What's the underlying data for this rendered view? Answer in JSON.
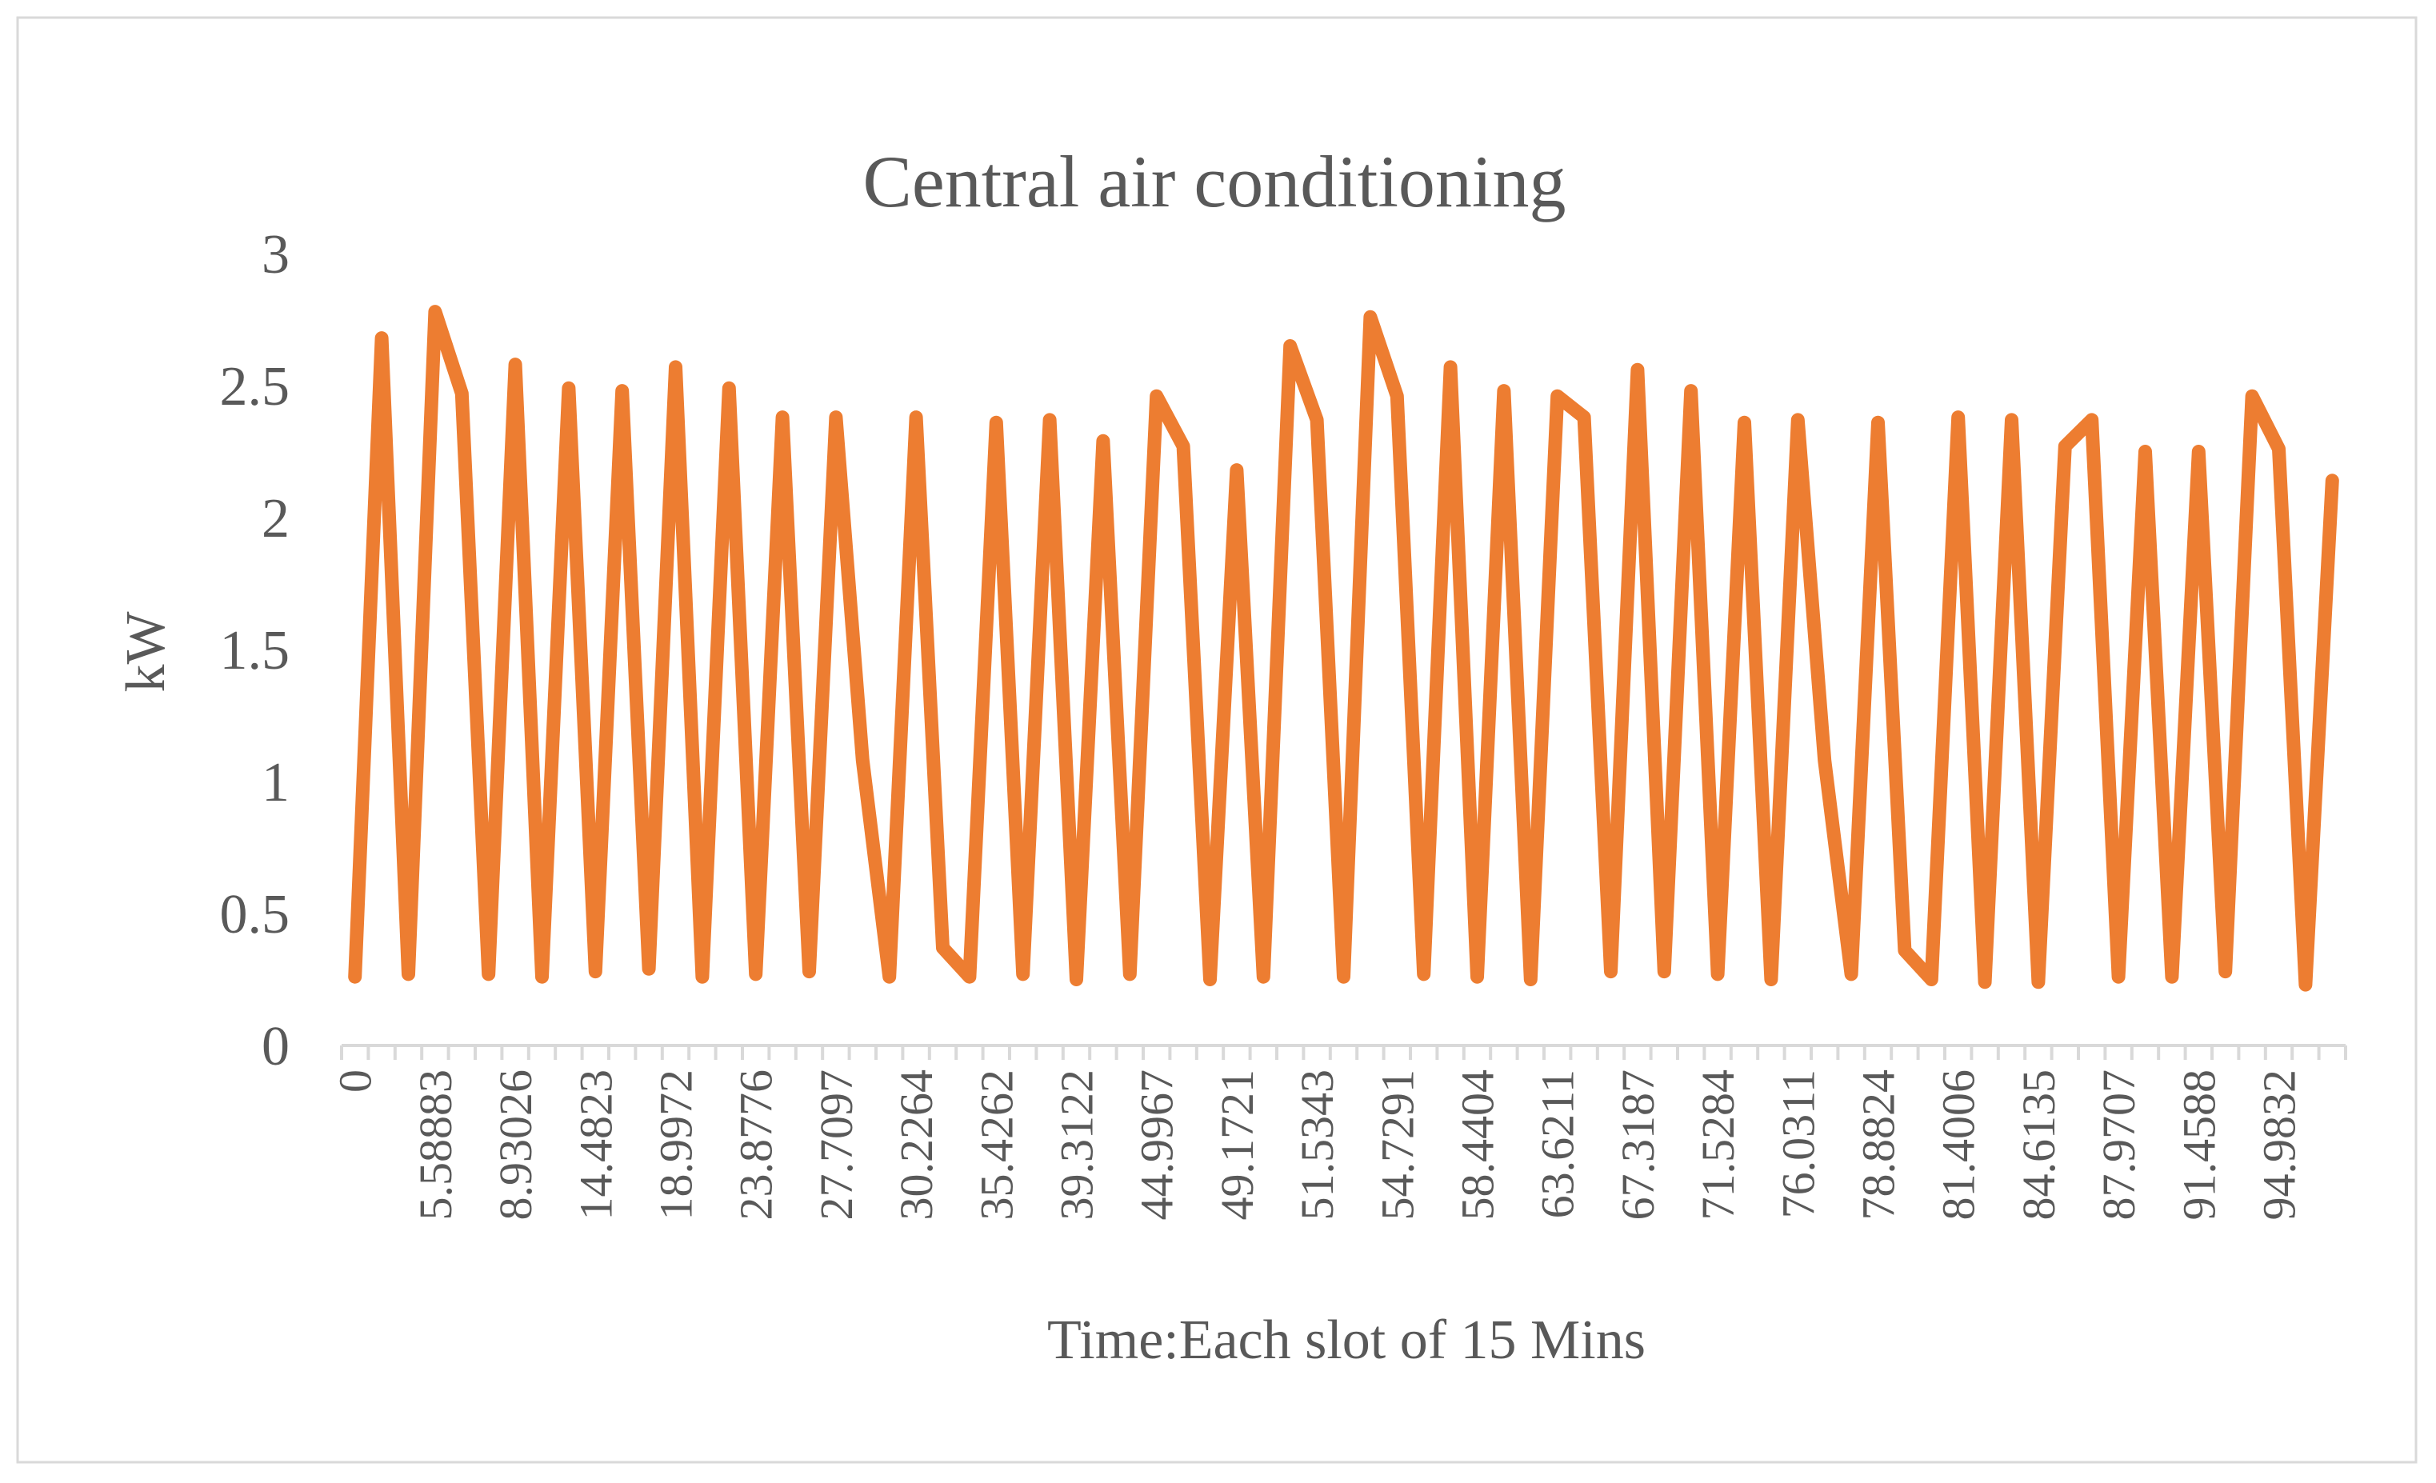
{
  "chart_data": {
    "type": "line",
    "title": "Central air conditioning",
    "xlabel": "Time:Each slot of 15 Mins",
    "ylabel": "kW",
    "ylim": [
      0,
      3
    ],
    "y_ticks": [
      "0",
      "0.5",
      "1",
      "1.5",
      "2",
      "2.5",
      "3"
    ],
    "grid": false,
    "legend": "none",
    "line_color": "#ED7D31",
    "x_tick_labels": [
      "0",
      "5.58883",
      "8.93026",
      "14.4823",
      "18.9972",
      "23.8776",
      "27.7097",
      "30.2264",
      "35.4262",
      "39.3122",
      "44.9967",
      "49.1721",
      "51.5343",
      "54.7291",
      "58.4404",
      "63.6211",
      "67.3187",
      "71.5284",
      "76.0311",
      "78.8824",
      "81.4006",
      "84.6135",
      "87.9707",
      "91.4588",
      "94.9832"
    ],
    "x_label_interval": 3,
    "values": [
      0.26,
      2.68,
      0.27,
      2.78,
      2.47,
      0.27,
      2.58,
      0.26,
      2.49,
      0.28,
      2.48,
      0.29,
      2.57,
      0.26,
      2.49,
      0.27,
      2.38,
      0.28,
      2.38,
      1.08,
      0.26,
      2.38,
      0.37,
      0.26,
      2.36,
      0.27,
      2.37,
      0.25,
      2.29,
      0.27,
      2.46,
      2.27,
      0.25,
      2.18,
      0.26,
      2.65,
      2.37,
      0.26,
      2.76,
      2.46,
      0.27,
      2.57,
      0.26,
      2.48,
      0.25,
      2.46,
      2.38,
      0.28,
      2.56,
      0.28,
      2.48,
      0.27,
      2.36,
      0.25,
      2.37,
      1.08,
      0.27,
      2.36,
      0.36,
      0.25,
      2.38,
      0.24,
      2.37,
      0.24,
      2.27,
      2.37,
      0.26,
      2.25,
      0.26,
      2.25,
      0.28,
      2.46,
      2.26,
      0.23,
      2.14
    ]
  }
}
